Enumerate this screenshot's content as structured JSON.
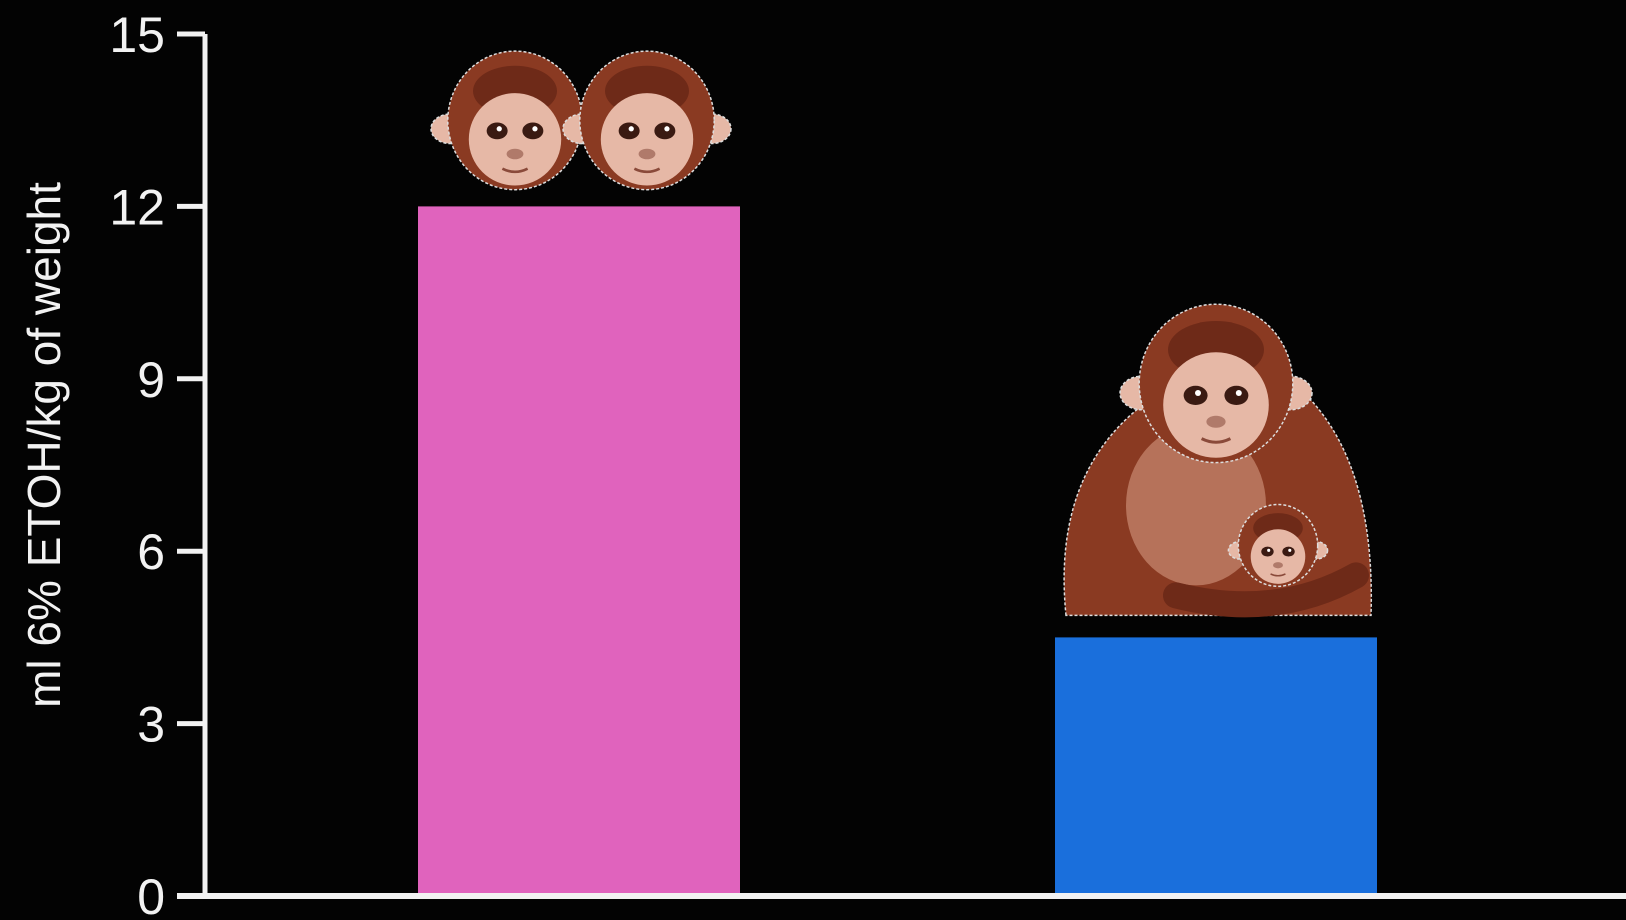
{
  "chart_data": {
    "type": "bar",
    "title": "",
    "xlabel": "",
    "ylabel": "ml 6% ETOH/kg of weight",
    "ylim": [
      0,
      15
    ],
    "yticks": [
      0,
      3,
      6,
      9,
      12,
      15
    ],
    "grid": false,
    "legend": "none",
    "categories": [
      "",
      ""
    ],
    "values": [
      12,
      4.5
    ],
    "bar_icons": [
      "monkey-pair-icon",
      "monkey-mother-infant-icon"
    ],
    "colors": {
      "background": "#030303",
      "axis": "#f2f2f2",
      "bars": [
        "#e063bd",
        "#1a6fdc"
      ],
      "fur": "#8a3a22",
      "face": "#e6b8a6"
    }
  }
}
